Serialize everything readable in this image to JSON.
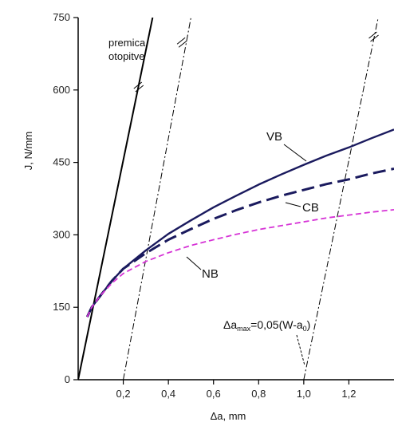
{
  "chart_data": {
    "type": "line",
    "title": "",
    "xlabel": "Δa, mm",
    "ylabel": "J, N/mm",
    "xlim": [
      0,
      1.4
    ],
    "ylim": [
      0,
      750
    ],
    "x_ticks": [
      "0,2",
      "0,4",
      "0,6",
      "0,8",
      "1,0",
      "1,2"
    ],
    "x_tick_values": [
      0.2,
      0.4,
      0.6,
      0.8,
      1.0,
      1.2
    ],
    "y_ticks": [
      "0",
      "150",
      "300",
      "450",
      "600",
      "750"
    ],
    "y_tick_values": [
      0,
      150,
      300,
      450,
      600,
      750
    ],
    "grid": false,
    "legend": "none",
    "series": [
      {
        "name": "VB",
        "color": "#1a1a5e",
        "style": "solid",
        "x": [
          0.04,
          0.06,
          0.1,
          0.15,
          0.2,
          0.3,
          0.4,
          0.5,
          0.6,
          0.7,
          0.8,
          0.9,
          1.0,
          1.1,
          1.2,
          1.3,
          1.4
        ],
        "y": [
          130,
          150,
          175,
          205,
          230,
          268,
          302,
          330,
          357,
          381,
          404,
          425,
          445,
          464,
          481,
          500,
          518
        ]
      },
      {
        "name": "CB",
        "color": "#1a1a5e",
        "style": "dashed",
        "x": [
          0.04,
          0.06,
          0.1,
          0.15,
          0.2,
          0.3,
          0.4,
          0.5,
          0.6,
          0.7,
          0.8,
          0.9,
          1.0,
          1.1,
          1.2,
          1.3,
          1.4
        ],
        "y": [
          130,
          150,
          175,
          205,
          230,
          262,
          290,
          312,
          333,
          351,
          367,
          381,
          393,
          405,
          415,
          427,
          437
        ]
      },
      {
        "name": "NB",
        "color": "#d633d6",
        "style": "dashed",
        "x": [
          0.04,
          0.06,
          0.1,
          0.15,
          0.2,
          0.3,
          0.4,
          0.5,
          0.6,
          0.7,
          0.8,
          0.9,
          1.0,
          1.1,
          1.2,
          1.3,
          1.4
        ],
        "y": [
          130,
          150,
          175,
          200,
          220,
          245,
          263,
          278,
          290,
          301,
          311,
          319,
          327,
          335,
          341,
          347,
          352
        ]
      }
    ],
    "blunting_line": {
      "x": [
        0.0,
        0.33
      ],
      "y": [
        0,
        750
      ]
    },
    "offset_lines": [
      {
        "x": [
          0.2,
          0.5
        ],
        "y": [
          0,
          750
        ],
        "style": "dashdot"
      },
      {
        "x": [
          1.0,
          1.33
        ],
        "y": [
          0,
          750
        ],
        "style": "dashdot"
      }
    ],
    "annotations": {
      "blunting_label_1": "premica",
      "blunting_label_2": "otopitve",
      "delta_a_max": "Δa",
      "delta_a_max_sub": "max",
      "delta_a_max_rest": "=0,05(W-a",
      "delta_a_max_sub2": "0",
      "delta_a_max_close": ")",
      "vb": "VB",
      "cb": "CB",
      "nb": "NB"
    }
  }
}
